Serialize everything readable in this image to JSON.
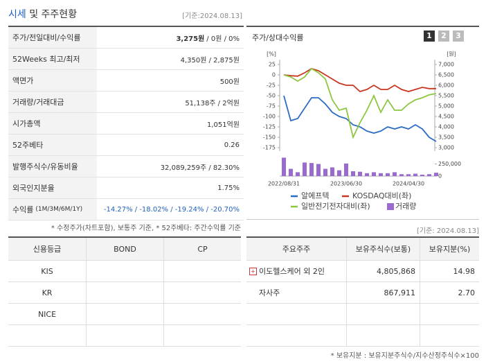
{
  "header": {
    "title_highlight": "시세",
    "title_rest": "및 주주현황",
    "date": "[기준:2024.08.13]"
  },
  "price_table": {
    "rows": [
      {
        "label": "주가/전일대비/수익률",
        "value_bold": "3,275원",
        "value": "/ 0원 / 0%"
      },
      {
        "label": "52Weeks 최고/최저",
        "value": "4,350원 / 2,875원"
      },
      {
        "label": "액면가",
        "value": "500원"
      },
      {
        "label": "거래량/거래대금",
        "value": "51,138주 / 2억원"
      },
      {
        "label": "시가총액",
        "value": "1,051억원"
      },
      {
        "label": "52주베타",
        "value": "0.26"
      },
      {
        "label": "발행주식수/유동비율",
        "value": "32,089,259주 / 82.30%"
      },
      {
        "label": "외국인지분율",
        "value": "1.75%"
      },
      {
        "label": "수익률",
        "label_sub": "(1M/3M/6M/1Y)",
        "value": "-14.27% / -18.02% / -19.24% / -20.70%",
        "blue": true
      }
    ],
    "note": "* 수정주가(차트포함), 보통주 기준, * 52주베타: 주간수익률 기준"
  },
  "chart_data": {
    "type": "line",
    "title": "주가/상대수익률",
    "buttons": [
      "1",
      "2",
      "3"
    ],
    "categories": [
      "2022/08/31",
      null,
      null,
      null,
      null,
      null,
      null,
      null,
      null,
      "2023/06/30",
      null,
      null,
      null,
      null,
      null,
      null,
      null,
      null,
      "2024/04/30",
      null,
      null,
      null,
      null
    ],
    "y_unit": "[%]",
    "ylim": [
      -175,
      25
    ],
    "yticks": [
      25,
      0,
      -25,
      -50,
      -75,
      -100,
      -125,
      -150,
      -175
    ],
    "y2_unit": "[원]",
    "y2lim": [
      3000,
      7000
    ],
    "y2ticks": [
      {
        "value": 7000,
        "label": "7,000"
      },
      {
        "value": 6500,
        "label": "6,500"
      },
      {
        "value": 6000,
        "label": "6,000"
      },
      {
        "value": 5500,
        "label": "5,500"
      },
      {
        "value": 5000,
        "label": "5,000"
      },
      {
        "value": 4500,
        "label": "4,500"
      },
      {
        "value": 4000,
        "label": "4,000"
      },
      {
        "value": 3500,
        "label": "3,500"
      },
      {
        "value": 3000,
        "label": "3,000"
      }
    ],
    "y3lim": [
      0,
      400000
    ],
    "y3ticks": [
      {
        "value": 250000,
        "label": "250,000"
      },
      0
    ],
    "series": [
      {
        "name": "알에프텍",
        "color": "#2b6cc4",
        "axis": "y2",
        "values": [
          5500,
          4300,
          4400,
          4900,
          5400,
          5400,
          5100,
          4700,
          4500,
          4400,
          4100,
          4000,
          3800,
          3700,
          3800,
          4000,
          3900,
          4000,
          3900,
          4100,
          3900,
          3500,
          3300
        ]
      },
      {
        "name": "KOSDAQ대비(좌)",
        "color": "#c9361f",
        "values": [
          0,
          -2,
          -3,
          5,
          15,
          10,
          0,
          -10,
          -20,
          -25,
          -25,
          -40,
          -35,
          -25,
          -35,
          -35,
          -25,
          -35,
          -40,
          -35,
          -30,
          -33,
          -33
        ]
      },
      {
        "name": "일반전기전자대비(좌)",
        "color": "#8dc63f",
        "values": [
          0,
          -5,
          -15,
          -5,
          15,
          5,
          -10,
          -60,
          -85,
          -80,
          -150,
          -115,
          -85,
          -50,
          -90,
          -60,
          -85,
          -85,
          -70,
          -60,
          -55,
          -48,
          -45
        ]
      },
      {
        "name": "거래량",
        "color": "#9b6ad0",
        "type": "bar",
        "axis": "y3",
        "values": [
          380000,
          150000,
          80000,
          280000,
          270000,
          250000,
          150000,
          180000,
          120000,
          260000,
          100000,
          90000,
          60000,
          80000,
          60000,
          60000,
          80000,
          40000,
          40000,
          50000,
          30000,
          40000,
          70000
        ]
      }
    ]
  },
  "credit_table": {
    "columns": [
      "신용등급",
      "BOND",
      "CP"
    ],
    "rows": [
      "KIS",
      "KR",
      "NICE"
    ]
  },
  "holder_table": {
    "date": "[기준: 2024.08.13]",
    "columns": [
      "주요주주",
      "보유주식수(보통)",
      "보유지분(%)"
    ],
    "rows": [
      [
        "이도헬스케어 외 2인",
        "4,805,868",
        "14.98"
      ],
      [
        "자사주",
        "867,911",
        "2.70"
      ]
    ],
    "note": "* 보유지분 : 보유지분주식수/지수산정주식수×100"
  }
}
